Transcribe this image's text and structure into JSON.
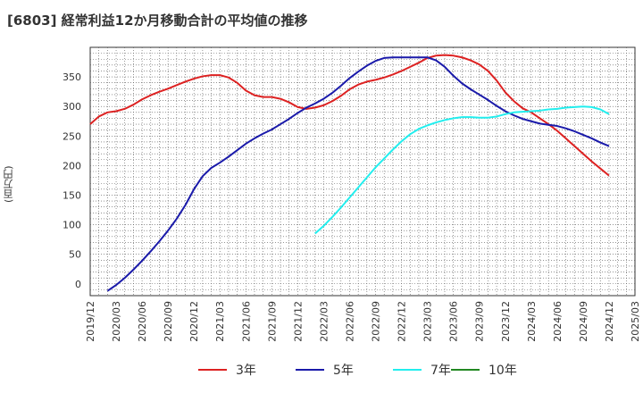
{
  "chart_data": {
    "type": "line",
    "title": "[6803]  経常利益12か月移動合計の平均値の推移",
    "ylabel": "(百万円)",
    "xlabel": "",
    "ylim": [
      -20,
      400
    ],
    "yticks": [
      0,
      50,
      100,
      150,
      200,
      250,
      300,
      350
    ],
    "xlim": [
      "2019-12",
      "2025-03"
    ],
    "xticks": [
      "2019/12",
      "2020/03",
      "2020/06",
      "2020/09",
      "2020/12",
      "2021/03",
      "2021/06",
      "2021/09",
      "2021/12",
      "2022/03",
      "2022/06",
      "2022/09",
      "2022/12",
      "2023/03",
      "2023/06",
      "2023/09",
      "2023/12",
      "2024/03",
      "2024/06",
      "2024/09",
      "2024/12",
      "2025/03"
    ],
    "grid": true,
    "legend_position": "bottom",
    "series": [
      {
        "name": "3年",
        "color": "#dd2222",
        "points": [
          [
            "2019-12",
            270
          ],
          [
            "2020-01",
            283
          ],
          [
            "2020-02",
            290
          ],
          [
            "2020-03",
            292
          ],
          [
            "2020-04",
            296
          ],
          [
            "2020-05",
            303
          ],
          [
            "2020-06",
            312
          ],
          [
            "2020-07",
            319
          ],
          [
            "2020-08",
            325
          ],
          [
            "2020-09",
            330
          ],
          [
            "2020-10",
            336
          ],
          [
            "2020-11",
            342
          ],
          [
            "2020-12",
            347
          ],
          [
            "2021-01",
            351
          ],
          [
            "2021-02",
            353
          ],
          [
            "2021-03",
            353
          ],
          [
            "2021-04",
            349
          ],
          [
            "2021-05",
            340
          ],
          [
            "2021-06",
            327
          ],
          [
            "2021-07",
            319
          ],
          [
            "2021-08",
            316
          ],
          [
            "2021-09",
            316
          ],
          [
            "2021-10",
            313
          ],
          [
            "2021-11",
            307
          ],
          [
            "2021-12",
            299
          ],
          [
            "2022-01",
            296
          ],
          [
            "2022-02",
            298
          ],
          [
            "2022-03",
            302
          ],
          [
            "2022-04",
            309
          ],
          [
            "2022-05",
            318
          ],
          [
            "2022-06",
            329
          ],
          [
            "2022-07",
            337
          ],
          [
            "2022-08",
            342
          ],
          [
            "2022-09",
            345
          ],
          [
            "2022-10",
            349
          ],
          [
            "2022-11",
            354
          ],
          [
            "2022-12",
            360
          ],
          [
            "2023-01",
            367
          ],
          [
            "2023-02",
            374
          ],
          [
            "2023-03",
            382
          ],
          [
            "2023-04",
            386
          ],
          [
            "2023-05",
            387
          ],
          [
            "2023-06",
            386
          ],
          [
            "2023-07",
            383
          ],
          [
            "2023-08",
            378
          ],
          [
            "2023-09",
            371
          ],
          [
            "2023-10",
            360
          ],
          [
            "2023-11",
            344
          ],
          [
            "2023-12",
            324
          ],
          [
            "2024-01",
            309
          ],
          [
            "2024-02",
            297
          ],
          [
            "2024-03",
            290
          ],
          [
            "2024-04",
            280
          ],
          [
            "2024-05",
            270
          ],
          [
            "2024-06",
            259
          ],
          [
            "2024-07",
            246
          ],
          [
            "2024-08",
            233
          ],
          [
            "2024-09",
            220
          ],
          [
            "2024-10",
            207
          ],
          [
            "2024-11",
            195
          ],
          [
            "2024-12",
            183
          ]
        ]
      },
      {
        "name": "5年",
        "color": "#1a1aaa",
        "points": [
          [
            "2020-02",
            -12
          ],
          [
            "2020-03",
            -2
          ],
          [
            "2020-04",
            10
          ],
          [
            "2020-05",
            24
          ],
          [
            "2020-06",
            39
          ],
          [
            "2020-07",
            55
          ],
          [
            "2020-08",
            72
          ],
          [
            "2020-09",
            90
          ],
          [
            "2020-10",
            110
          ],
          [
            "2020-11",
            133
          ],
          [
            "2020-12",
            160
          ],
          [
            "2021-01",
            182
          ],
          [
            "2021-02",
            196
          ],
          [
            "2021-03",
            205
          ],
          [
            "2021-04",
            215
          ],
          [
            "2021-05",
            226
          ],
          [
            "2021-06",
            237
          ],
          [
            "2021-07",
            246
          ],
          [
            "2021-08",
            254
          ],
          [
            "2021-09",
            261
          ],
          [
            "2021-10",
            270
          ],
          [
            "2021-11",
            279
          ],
          [
            "2021-12",
            289
          ],
          [
            "2022-01",
            298
          ],
          [
            "2022-02",
            305
          ],
          [
            "2022-03",
            313
          ],
          [
            "2022-04",
            323
          ],
          [
            "2022-05",
            335
          ],
          [
            "2022-06",
            348
          ],
          [
            "2022-07",
            359
          ],
          [
            "2022-08",
            369
          ],
          [
            "2022-09",
            377
          ],
          [
            "2022-10",
            382
          ],
          [
            "2022-11",
            383
          ],
          [
            "2022-12",
            383
          ],
          [
            "2023-01",
            383
          ],
          [
            "2023-02",
            383
          ],
          [
            "2023-03",
            383
          ],
          [
            "2023-04",
            378
          ],
          [
            "2023-05",
            367
          ],
          [
            "2023-06",
            352
          ],
          [
            "2023-07",
            339
          ],
          [
            "2023-08",
            329
          ],
          [
            "2023-09",
            320
          ],
          [
            "2023-10",
            311
          ],
          [
            "2023-11",
            301
          ],
          [
            "2023-12",
            292
          ],
          [
            "2024-01",
            285
          ],
          [
            "2024-02",
            279
          ],
          [
            "2024-03",
            275
          ],
          [
            "2024-04",
            271
          ],
          [
            "2024-05",
            269
          ],
          [
            "2024-06",
            267
          ],
          [
            "2024-07",
            263
          ],
          [
            "2024-08",
            258
          ],
          [
            "2024-09",
            252
          ],
          [
            "2024-10",
            246
          ],
          [
            "2024-11",
            239
          ],
          [
            "2024-12",
            233
          ]
        ]
      },
      {
        "name": "7年",
        "color": "#22eeee",
        "points": [
          [
            "2022-02",
            85
          ],
          [
            "2022-03",
            98
          ],
          [
            "2022-04",
            113
          ],
          [
            "2022-05",
            129
          ],
          [
            "2022-06",
            146
          ],
          [
            "2022-07",
            163
          ],
          [
            "2022-08",
            180
          ],
          [
            "2022-09",
            197
          ],
          [
            "2022-10",
            212
          ],
          [
            "2022-11",
            227
          ],
          [
            "2022-12",
            241
          ],
          [
            "2023-01",
            253
          ],
          [
            "2023-02",
            262
          ],
          [
            "2023-03",
            268
          ],
          [
            "2023-04",
            273
          ],
          [
            "2023-05",
            277
          ],
          [
            "2023-06",
            280
          ],
          [
            "2023-07",
            282
          ],
          [
            "2023-08",
            282
          ],
          [
            "2023-09",
            281
          ],
          [
            "2023-10",
            281
          ],
          [
            "2023-11",
            283
          ],
          [
            "2023-12",
            287
          ],
          [
            "2024-01",
            290
          ],
          [
            "2024-02",
            291
          ],
          [
            "2024-03",
            292
          ],
          [
            "2024-04",
            293
          ],
          [
            "2024-05",
            295
          ],
          [
            "2024-06",
            296
          ],
          [
            "2024-07",
            298
          ],
          [
            "2024-08",
            299
          ],
          [
            "2024-09",
            300
          ],
          [
            "2024-10",
            299
          ],
          [
            "2024-11",
            295
          ],
          [
            "2024-12",
            287
          ]
        ]
      },
      {
        "name": "10年",
        "color": "#228822",
        "points": []
      }
    ]
  }
}
